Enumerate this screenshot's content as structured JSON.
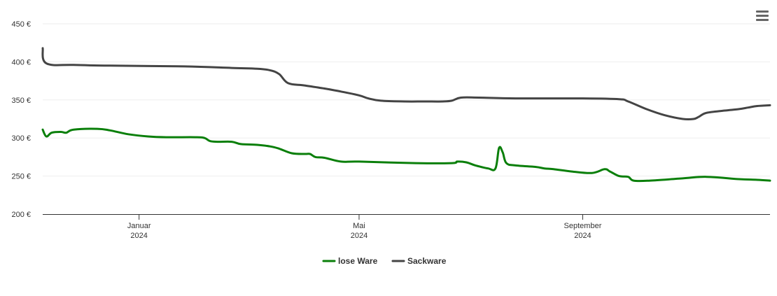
{
  "chart_data": {
    "type": "line",
    "title": "",
    "xlabel": "",
    "ylabel": "",
    "ylim": [
      200,
      450
    ],
    "xlim": [
      "2023-11-09",
      "2024-12-13"
    ],
    "y_ticks": [
      200,
      250,
      300,
      350,
      400,
      450
    ],
    "y_tick_format": "{v} €",
    "x_ticks": [
      {
        "date": "2024-01-01",
        "label": "Januar",
        "year": "2024"
      },
      {
        "date": "2024-05-01",
        "label": "Mai",
        "year": "2024"
      },
      {
        "date": "2024-09-01",
        "label": "September",
        "year": "2024"
      }
    ],
    "grid": true,
    "legend": "bottom-center",
    "series": [
      {
        "name": "lose Ware",
        "color": "#0a7f0a",
        "points": [
          [
            "2023-11-09",
            311
          ],
          [
            "2023-11-11",
            302
          ],
          [
            "2023-11-14",
            307
          ],
          [
            "2023-11-19",
            308
          ],
          [
            "2023-11-22",
            307
          ],
          [
            "2023-11-26",
            311
          ],
          [
            "2023-12-09",
            312
          ],
          [
            "2023-12-16",
            310
          ],
          [
            "2023-12-26",
            305
          ],
          [
            "2024-01-06",
            302
          ],
          [
            "2024-01-16",
            301
          ],
          [
            "2024-02-01",
            301
          ],
          [
            "2024-02-06",
            300
          ],
          [
            "2024-02-09",
            296
          ],
          [
            "2024-02-13",
            295
          ],
          [
            "2024-02-21",
            295
          ],
          [
            "2024-02-26",
            292
          ],
          [
            "2024-03-06",
            291
          ],
          [
            "2024-03-13",
            289
          ],
          [
            "2024-03-18",
            286
          ],
          [
            "2024-03-25",
            280
          ],
          [
            "2024-04-01",
            279
          ],
          [
            "2024-04-04",
            279
          ],
          [
            "2024-04-07",
            275
          ],
          [
            "2024-04-12",
            274
          ],
          [
            "2024-04-21",
            269
          ],
          [
            "2024-05-01",
            269
          ],
          [
            "2024-06-01",
            267
          ],
          [
            "2024-06-21",
            267
          ],
          [
            "2024-06-24",
            269
          ],
          [
            "2024-06-29",
            268
          ],
          [
            "2024-07-04",
            264
          ],
          [
            "2024-07-11",
            260
          ],
          [
            "2024-07-15",
            260
          ],
          [
            "2024-07-17",
            287
          ],
          [
            "2024-07-19",
            281
          ],
          [
            "2024-07-21",
            267
          ],
          [
            "2024-07-26",
            264
          ],
          [
            "2024-08-06",
            262
          ],
          [
            "2024-08-11",
            260
          ],
          [
            "2024-08-16",
            259
          ],
          [
            "2024-08-26",
            256
          ],
          [
            "2024-09-06",
            254
          ],
          [
            "2024-09-13",
            259
          ],
          [
            "2024-09-16",
            256
          ],
          [
            "2024-09-21",
            250
          ],
          [
            "2024-09-26",
            249
          ],
          [
            "2024-09-29",
            244
          ],
          [
            "2024-10-08",
            244
          ],
          [
            "2024-10-26",
            247
          ],
          [
            "2024-11-08",
            249
          ],
          [
            "2024-11-26",
            246
          ],
          [
            "2024-12-06",
            245
          ],
          [
            "2024-12-13",
            244
          ]
        ]
      },
      {
        "name": "Sackware",
        "color": "#444444",
        "points": [
          [
            "2023-11-09",
            418
          ],
          [
            "2023-11-11",
            398
          ],
          [
            "2023-11-26",
            396
          ],
          [
            "2023-12-16",
            395
          ],
          [
            "2024-01-26",
            394
          ],
          [
            "2024-02-21",
            392
          ],
          [
            "2024-03-06",
            391
          ],
          [
            "2024-03-13",
            389
          ],
          [
            "2024-03-18",
            384
          ],
          [
            "2024-03-23",
            372
          ],
          [
            "2024-04-01",
            369
          ],
          [
            "2024-04-12",
            365
          ],
          [
            "2024-04-21",
            361
          ],
          [
            "2024-05-01",
            356
          ],
          [
            "2024-05-06",
            352
          ],
          [
            "2024-05-13",
            349
          ],
          [
            "2024-05-26",
            348
          ],
          [
            "2024-06-06",
            348
          ],
          [
            "2024-06-16",
            348
          ],
          [
            "2024-06-21",
            349
          ],
          [
            "2024-06-26",
            353
          ],
          [
            "2024-07-06",
            353
          ],
          [
            "2024-07-26",
            352
          ],
          [
            "2024-09-01",
            352
          ],
          [
            "2024-09-21",
            351
          ],
          [
            "2024-09-26",
            348
          ],
          [
            "2024-10-06",
            338
          ],
          [
            "2024-10-16",
            330
          ],
          [
            "2024-10-26",
            325
          ],
          [
            "2024-11-01",
            325
          ],
          [
            "2024-11-04",
            328
          ],
          [
            "2024-11-08",
            333
          ],
          [
            "2024-11-18",
            336
          ],
          [
            "2024-11-26",
            338
          ],
          [
            "2024-12-01",
            340
          ],
          [
            "2024-12-06",
            342
          ],
          [
            "2024-12-13",
            343
          ]
        ]
      }
    ]
  },
  "toolbar": {
    "menu_icon": "hamburger-menu-icon"
  }
}
